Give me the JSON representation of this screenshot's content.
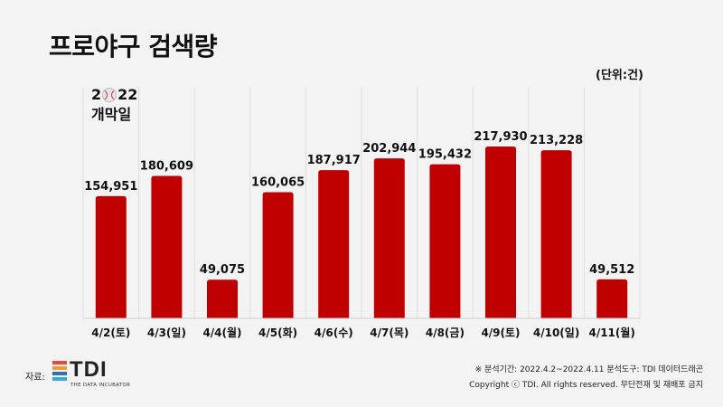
{
  "title": "프로야구 검색량",
  "unit": "(단위:건)",
  "note": {
    "year_start": "2",
    "year_end": "22",
    "label": "개막일"
  },
  "chart_data": {
    "type": "bar",
    "categories": [
      "4/2(토)",
      "4/3(일)",
      "4/4(월)",
      "4/5(화)",
      "4/6(수)",
      "4/7(목)",
      "4/8(금)",
      "4/9(토)",
      "4/10(일)",
      "4/11(월)"
    ],
    "values": [
      154951,
      180609,
      49075,
      160065,
      187917,
      202944,
      195432,
      217930,
      213228,
      49512
    ],
    "value_labels": [
      "154,951",
      "180,609",
      "49,075",
      "160,065",
      "187,917",
      "202,944",
      "195,432",
      "217,930",
      "213,228",
      "49,512"
    ],
    "ylim": [
      0,
      240000
    ],
    "bar_color": "#c00000",
    "grid": "vertical",
    "title": "프로야구 검색량"
  },
  "footer": {
    "source_label": "자료:",
    "logo_text": "TDI",
    "logo_sub": "THE DATA INCUBATOR",
    "logo_colors": [
      "#e8483f",
      "#f39c2d",
      "#2f6fb6",
      "#3aa6dd"
    ],
    "period": "※ 분석기간: 2022.4.2~2022.4.11   분석도구: TDI 데이터드래곤",
    "copyright": "Copyright ⓒ TDI. All rights reserved. 무단전재 및 재배포 금지"
  }
}
